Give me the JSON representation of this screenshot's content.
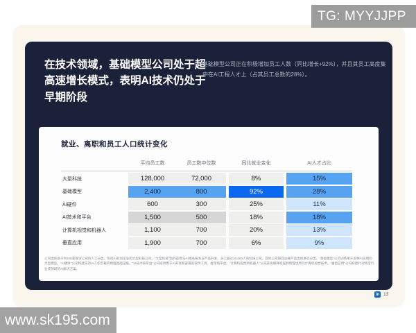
{
  "watermarks": {
    "top": "TG: MYYJJPP",
    "bottom": "www.sk195.com"
  },
  "slide": {
    "headline": "在技术领域，基础模型公司处于超高速增长模式，表明AI技术仍处于早期阶段",
    "subtext": "基础模型公司正在积极增加员工人数（同比增长+92%），并且其员工高度集中在AI工程人才上（占其员工总数的28%）。",
    "linkedin_icon": "in",
    "page_number": "13"
  },
  "card": {
    "title": "就业、离职和员工人口统计变化",
    "footnote": "公司类别基于约200家受访公司的人工分类，包括AI初创企业和大型科技公司。“大型科技”指的是参与AI相关技术与产品开发、员工超过20,000人的科技公司，其他公司按其主要产品类别进行分类。“基础模型”公司训练用于多种AI应用的大型模型。“AI硬件”公司构建支持AI工作负载的物理基础设施。“AI技术和平台”公司提供用于AI开发和部署的软件工具、框架和平台。“计算机视觉和机器人”公司开发解释或控制物理世界的计算机视觉技术。“垂直应用”公司构建针对特定行业或领域的AI解决方案。"
  },
  "table": {
    "columns": [
      "平均员工数",
      "员工数中位数",
      "同比就业变化",
      "AI人才占比"
    ],
    "rows": [
      {
        "label": "大型科技",
        "values": [
          "128,000",
          "72,000",
          "8%",
          "15%"
        ],
        "styles": [
          "light",
          "light",
          "light",
          "blue-mid"
        ]
      },
      {
        "label": "基础模型",
        "values": [
          "2,400",
          "800",
          "92%",
          "28%"
        ],
        "styles": [
          "blue-mid",
          "blue-mid",
          "blue-strong",
          "blue-mid"
        ]
      },
      {
        "label": "AI硬件",
        "values": [
          "600",
          "300",
          "25%",
          "11%"
        ],
        "styles": [
          "light",
          "light",
          "light",
          "blue-light"
        ]
      },
      {
        "label": "AI技术和平台",
        "values": [
          "1,500",
          "500",
          "18%",
          "18%"
        ],
        "styles": [
          "gray-mid",
          "gray-mid",
          "light",
          "blue-mid"
        ]
      },
      {
        "label": "计算机视觉和机器人",
        "values": [
          "1,100",
          "700",
          "20%",
          "13%"
        ],
        "styles": [
          "light",
          "light",
          "light",
          "blue-light"
        ]
      },
      {
        "label": "垂直应用",
        "values": [
          "1,900",
          "700",
          "6%",
          "9%"
        ],
        "styles": [
          "light",
          "light",
          "light",
          "blue-light"
        ]
      }
    ]
  },
  "colors": {
    "slide_bg": "#1a2138",
    "page_bg": "#faf5ed",
    "card_bg": "#fdfdfd",
    "cell_light_gray": "#efefee",
    "cell_mid_gray": "#d6d6d6",
    "cell_mid_blue": "#57a3f1",
    "cell_strong_blue": "#0c69ef",
    "cell_light_blue": "#cfe5fb",
    "watermark_gray": "#9c9c9c",
    "linkedin_blue": "#0a66c2"
  }
}
